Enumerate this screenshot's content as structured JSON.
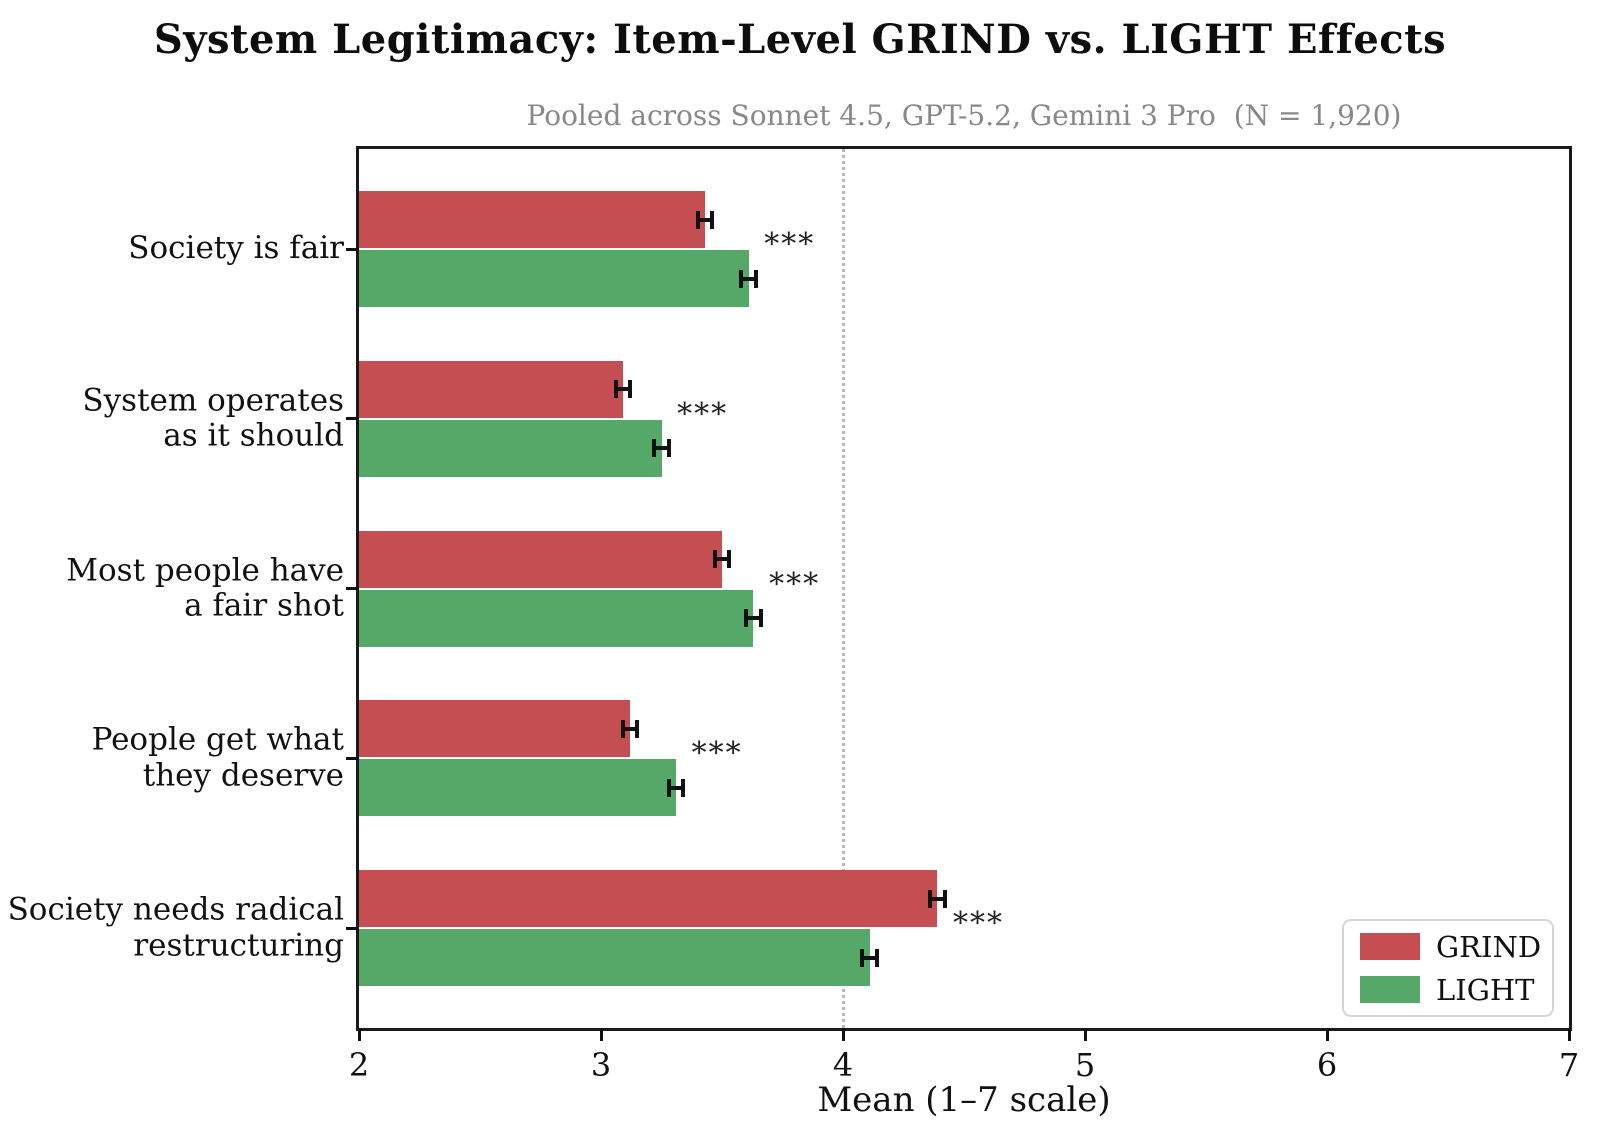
{
  "title": "System Legitimacy: Item-Level GRIND vs. LIGHT Effects",
  "subtitle": "Pooled across Sonnet 4.5, GPT-5.2, Gemini 3 Pro  (N = 1,920)",
  "xlabel": "Mean (1–7 scale)",
  "colors": {
    "grind": "#c44e52",
    "light": "#55a868",
    "subtitle_gray": "#888888",
    "reference_line": "#b8b8b8",
    "axis": "#1a1a1a"
  },
  "chart_data": {
    "type": "bar",
    "orientation": "horizontal",
    "title": "System Legitimacy: Item-Level GRIND vs. LIGHT Effects",
    "subtitle": "Pooled across Sonnet 4.5, GPT-5.2, Gemini 3 Pro  (N = 1,920)",
    "xlabel": "Mean (1–7 scale)",
    "categories": [
      "Society is fair",
      "System operates\nas it should",
      "Most people have\na fair shot",
      "People get what\nthey deserve",
      "Society needs radical\nrestructuring"
    ],
    "series": [
      {
        "name": "GRIND",
        "color": "#c44e52",
        "values": [
          3.43,
          3.09,
          3.5,
          3.12,
          4.39
        ],
        "errors": [
          0.03,
          0.03,
          0.03,
          0.03,
          0.03
        ]
      },
      {
        "name": "LIGHT",
        "color": "#55a868",
        "values": [
          3.61,
          3.25,
          3.63,
          3.31,
          4.11
        ],
        "errors": [
          0.03,
          0.03,
          0.03,
          0.03,
          0.03
        ]
      }
    ],
    "significance": [
      "***",
      "***",
      "***",
      "***",
      "***"
    ],
    "xlim": [
      2,
      7
    ],
    "xticks": [
      2,
      3,
      4,
      5,
      6,
      7
    ],
    "reference_line_x": 4,
    "grid": "off",
    "legend_position": "lower right"
  }
}
